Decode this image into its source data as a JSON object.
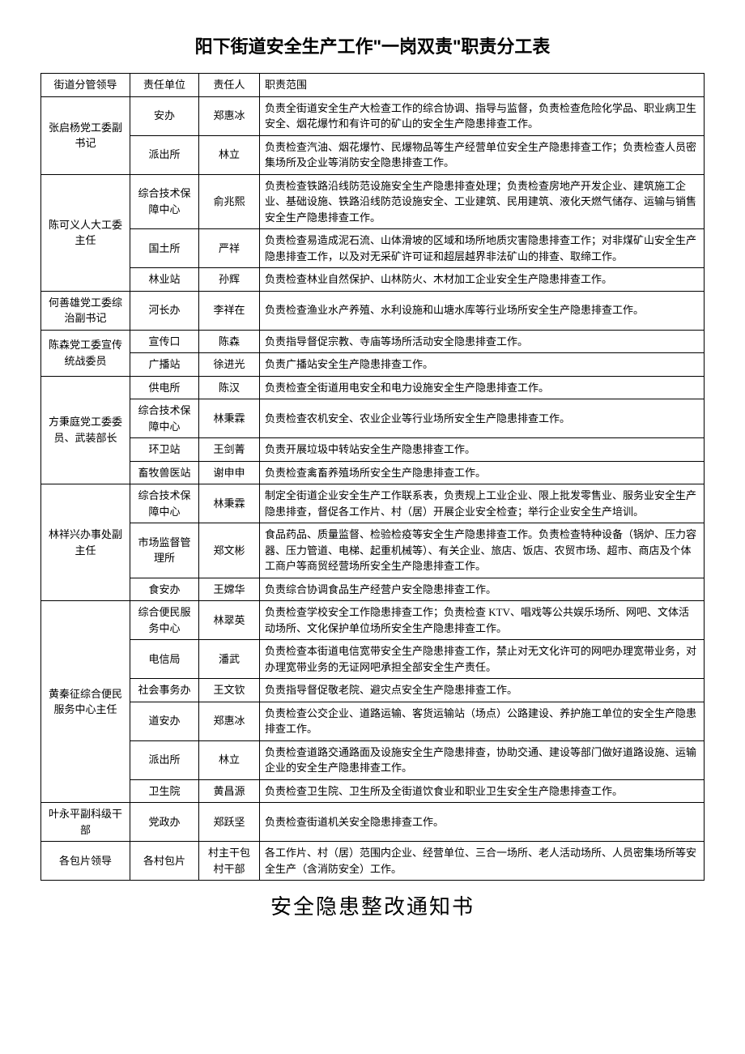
{
  "title": "阳下街道安全生产工作\"一岗双责\"职责分工表",
  "subtitle": "安全隐患整改通知书",
  "headers": {
    "leader": "街道分管领导",
    "unit": "责任单位",
    "person": "责任人",
    "scope": "职责范围"
  },
  "groups": [
    {
      "leader": "张启杨党工委副书记",
      "rows": [
        {
          "unit": "安办",
          "person": "郑惠冰",
          "scope": "负责全街道安全生产大检查工作的综合协调、指导与监督，负责检查危险化学品、职业病卫生安全、烟花爆竹和有许可的矿山的安全生产隐患排查工作。"
        },
        {
          "unit": "派出所",
          "person": "林立",
          "scope": "负责检查汽油、烟花爆竹、民爆物品等生产经营单位安全生产隐患排查工作；负责检查人员密集场所及企业等消防安全隐患排查工作。"
        }
      ]
    },
    {
      "leader": "陈可义人大工委主任",
      "rows": [
        {
          "unit": "综合技术保障中心",
          "person": "俞兆熙",
          "scope": "负责检查铁路沿线防范设施安全生产隐患排查处理；负责检查房地产开发企业、建筑施工企业、基础设施、铁路沿线防范设施安全、工业建筑、民用建筑、液化天燃气储存、运输与销售安全生产隐患排查工作。"
        },
        {
          "unit": "国土所",
          "person": "严祥",
          "scope": "负责检查易造成泥石流、山体滑坡的区域和场所地质灾害隐患排查工作；对非煤矿山安全生产隐患排查工作，以及对无采矿许可证和超层越界非法矿山的排查、取缔工作。"
        },
        {
          "unit": "林业站",
          "person": "孙辉",
          "scope": "负责检查林业自然保护、山林防火、木材加工企业安全生产隐患排查工作。"
        }
      ]
    },
    {
      "leader": "何善雄党工委综治副书记",
      "rows": [
        {
          "unit": "河长办",
          "person": "李祥在",
          "scope": "负责检查渔业水产养殖、水利设施和山塘水库等行业场所安全生产隐患排查工作。"
        }
      ]
    },
    {
      "leader": "陈森党工委宣传统战委员",
      "rows": [
        {
          "unit": "宣传口",
          "person": "陈森",
          "scope": "负责指导督促宗教、寺庙等场所活动安全隐患排查工作。"
        },
        {
          "unit": "广播站",
          "person": "徐进光",
          "scope": "负责广播站安全生产隐患排查工作。"
        }
      ]
    },
    {
      "leader": "方秉庭党工委委员、武装部长",
      "rows": [
        {
          "unit": "供电所",
          "person": "陈汉",
          "scope": "负责检查全街道用电安全和电力设施安全生产隐患排查工作。"
        },
        {
          "unit": "综合技术保障中心",
          "person": "林秉霖",
          "scope": "负责检查农机安全、农业企业等行业场所安全生产隐患排查工作。"
        },
        {
          "unit": "环卫站",
          "person": "王剑菁",
          "scope": "负责开展垃圾中转站安全生产隐患排查工作。"
        },
        {
          "unit": "畜牧兽医站",
          "person": "谢申申",
          "scope": "负责检查禽畜养殖场所安全生产隐患排查工作。"
        }
      ]
    },
    {
      "leader": "林祥兴办事处副主任",
      "rows": [
        {
          "unit": "综合技术保障中心",
          "person": "林秉霖",
          "scope": "制定全街道企业安全生产工作联系表，负责规上工业企业、限上批发零售业、服务业安全生产隐患排查，督促各工作片、村（居）开展企业安全检查；举行企业安全生产培训。"
        },
        {
          "unit": "市场监督管理所",
          "person": "郑文彬",
          "scope": "食品药品、质量监督、检验检疫等安全生产隐患排查工作。负责检查特种设备（锅炉、压力容器、压力管道、电梯、起重机械等）、有关企业、旅店、饭店、农贸市场、超市、商店及个体工商户等商贸经营场所安全生产隐患排查工作。"
        },
        {
          "unit": "食安办",
          "person": "王嫦华",
          "scope": "负责综合协调食品生产经营户安全隐患排查工作。"
        }
      ]
    },
    {
      "leader": "黄秦征综合便民服务中心主任",
      "rows": [
        {
          "unit": "综合便民服务中心",
          "person": "林翠英",
          "scope": "负责检查学校安全工作隐患排查工作；负责检查 KTV、唱戏等公共娱乐场所、网吧、文体活动场所、文化保护单位场所安全生产隐患排查工作。"
        },
        {
          "unit": "电信局",
          "person": "潘武",
          "scope": "负责检查本街道电信宽带安全生产隐患排查工作，禁止对无文化许可的网吧办理宽带业务，对办理宽带业务的无证网吧承担全部安全生产责任。"
        },
        {
          "unit": "社会事务办",
          "person": "王文钦",
          "scope": "负责指导督促敬老院、避灾点安全生产隐患排查工作。"
        },
        {
          "unit": "道安办",
          "person": "郑惠冰",
          "scope": "负责检查公交企业、道路运输、客货运输站（场点）公路建设、养护施工单位的安全生产隐患排查工作。"
        },
        {
          "unit": "派出所",
          "person": "林立",
          "scope": "负责检查道路交通路面及设施安全生产隐患排查，协助交通、建设等部门做好道路设施、运输企业的安全生产隐患排查工作。"
        },
        {
          "unit": "卫生院",
          "person": "黄昌源",
          "scope": "负责检查卫生院、卫生所及全街道饮食业和职业卫生安全生产隐患排查工作。"
        }
      ]
    },
    {
      "leader": "叶永平副科级干部",
      "rows": [
        {
          "unit": "党政办",
          "person": "郑跃坚",
          "scope": "负责检查街道机关安全隐患排查工作。"
        }
      ]
    },
    {
      "leader": "各包片领导",
      "rows": [
        {
          "unit": "各村包片",
          "person": "村主干包村干部",
          "scope": "各工作片、村（居）范围内企业、经营单位、三合一场所、老人活动场所、人员密集场所等安全生产（含消防安全）工作。"
        }
      ]
    }
  ]
}
